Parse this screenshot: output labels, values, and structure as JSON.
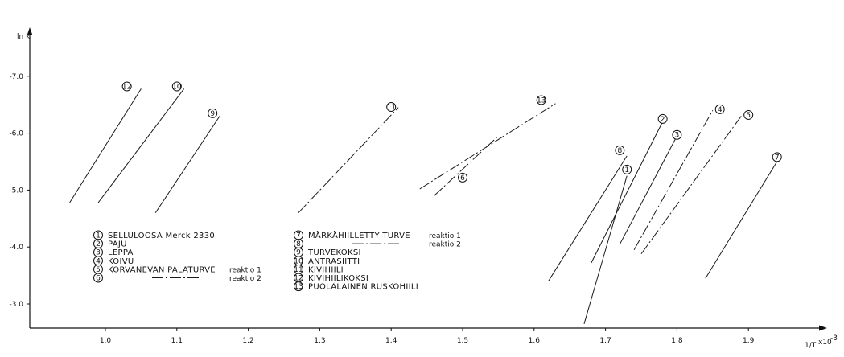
{
  "chart_data": {
    "type": "line",
    "xlabel": "1/T",
    "xlabel_suffix": "x10",
    "xlabel_exp": "-3",
    "ylabel": "ln k",
    "xlim": [
      0.9,
      1.96
    ],
    "ylim": [
      -2.5,
      -7.6
    ],
    "x_ticks": [
      1.0,
      1.1,
      1.2,
      1.3,
      1.4,
      1.5,
      1.6,
      1.7,
      1.8,
      1.9
    ],
    "x_tick_labels": [
      "1.0",
      "1.1",
      "1.2",
      "1.3",
      "1.4",
      "1.5",
      "1.6",
      "1.7",
      "1.8",
      "1.9"
    ],
    "y_ticks": [
      -3.0,
      -4.0,
      -5.0,
      -6.0,
      -7.0
    ],
    "y_tick_labels": [
      "-3.0",
      "-4.0",
      "-5.0",
      "-6.0",
      "-7.0"
    ],
    "grid": false,
    "legend_position": "bottom-left",
    "series": [
      {
        "num": "1",
        "style": "solid",
        "x": [
          1.67,
          1.73
        ],
        "y": [
          -2.65,
          -5.25
        ],
        "label_at": [
          1.73,
          -5.36
        ]
      },
      {
        "num": "2",
        "style": "solid",
        "x": [
          1.68,
          1.78
        ],
        "y": [
          -3.72,
          -6.2
        ],
        "label_at": [
          1.78,
          -6.25
        ]
      },
      {
        "num": "3",
        "style": "solid",
        "x": [
          1.72,
          1.8
        ],
        "y": [
          -4.05,
          -5.95
        ],
        "label_at": [
          1.8,
          -5.97
        ]
      },
      {
        "num": "4",
        "style": "dashdot",
        "x": [
          1.74,
          1.85
        ],
        "y": [
          -3.95,
          -6.4
        ],
        "label_at": [
          1.86,
          -6.42
        ]
      },
      {
        "num": "5",
        "style": "dashdot",
        "x": [
          1.75,
          1.89
        ],
        "y": [
          -3.88,
          -6.3
        ],
        "label_at": [
          1.9,
          -6.32
        ]
      },
      {
        "num": "6",
        "style": "dashdot",
        "x": [
          1.46,
          1.55
        ],
        "y": [
          -4.9,
          -5.95
        ],
        "label_at": [
          1.5,
          -5.22
        ]
      },
      {
        "num": "7",
        "style": "solid",
        "x": [
          1.84,
          1.94
        ],
        "y": [
          -3.45,
          -5.5
        ],
        "label_at": [
          1.94,
          -5.58
        ]
      },
      {
        "num": "8",
        "style": "solid",
        "x": [
          1.62,
          1.73
        ],
        "y": [
          -3.4,
          -5.6
        ],
        "label_at": [
          1.72,
          -5.7
        ]
      },
      {
        "num": "9",
        "style": "solid",
        "x": [
          1.07,
          1.16
        ],
        "y": [
          -4.6,
          -6.3
        ],
        "label_at": [
          1.15,
          -6.35
        ]
      },
      {
        "num": "10",
        "style": "solid",
        "x": [
          0.99,
          1.11
        ],
        "y": [
          -4.78,
          -6.78
        ],
        "label_at": [
          1.1,
          -6.82
        ]
      },
      {
        "num": "11",
        "style": "dashdot",
        "x": [
          1.27,
          1.41
        ],
        "y": [
          -4.6,
          -6.45
        ],
        "label_at": [
          1.4,
          -6.46
        ]
      },
      {
        "num": "12",
        "style": "solid",
        "x": [
          0.95,
          1.05
        ],
        "y": [
          -4.78,
          -6.78
        ],
        "label_at": [
          1.03,
          -6.82
        ]
      },
      {
        "num": "13",
        "style": "dashdot",
        "x": [
          1.44,
          1.63
        ],
        "y": [
          -5.02,
          -6.52
        ],
        "label_at": [
          1.61,
          -6.58
        ]
      }
    ],
    "legend": [
      {
        "num": "1",
        "label": "SELLULOOSA  Merck 2330",
        "extra": ""
      },
      {
        "num": "2",
        "label": "PAJU",
        "extra": ""
      },
      {
        "num": "3",
        "label": "LEPPÄ",
        "extra": ""
      },
      {
        "num": "4",
        "label": "KOIVU",
        "extra": ""
      },
      {
        "num": "5",
        "label": "KORVANEVAN PALATURVE",
        "extra": "reaktio 1"
      },
      {
        "num": "6",
        "label": "",
        "extra": "reaktio 2"
      },
      {
        "num": "7",
        "label": "MÄRKÄHIILLETTY TURVE",
        "extra": "reaktio 1"
      },
      {
        "num": "8",
        "label": "",
        "extra": "reaktio 2"
      },
      {
        "num": "9",
        "label": "TURVEKOKSI",
        "extra": ""
      },
      {
        "num": "10",
        "label": "ANTRASIITTI",
        "extra": ""
      },
      {
        "num": "11",
        "label": "KIVIHIILI",
        "extra": ""
      },
      {
        "num": "12",
        "label": "KIVIHIILIKOKSI",
        "extra": ""
      },
      {
        "num": "13",
        "label": "PUOLALAINEN RUSKOHIILI",
        "extra": ""
      }
    ]
  }
}
